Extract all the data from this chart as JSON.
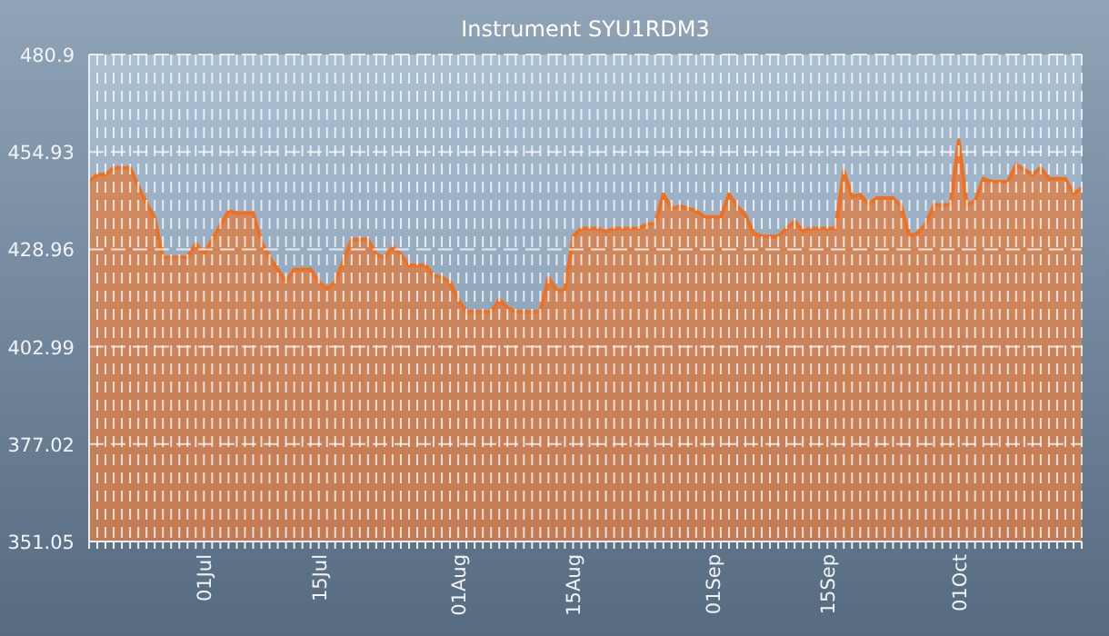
{
  "chart_data": {
    "type": "area",
    "title": "Instrument SYU1RDM3",
    "xlim": [
      "--06-17",
      "--10-16"
    ],
    "ylim": [
      351.05,
      480.9
    ],
    "yticks": [
      351.05,
      377.02,
      402.99,
      428.96,
      454.93,
      480.9
    ],
    "xticks": [
      {
        "value": "--06-17",
        "label": null
      },
      {
        "value": "--06-18",
        "label": null
      },
      {
        "value": "--06-19",
        "label": null
      },
      {
        "value": "--06-20",
        "label": null
      },
      {
        "value": "--06-21",
        "label": null
      },
      {
        "value": "--06-22",
        "label": null
      },
      {
        "value": "--06-23",
        "label": null
      },
      {
        "value": "--06-24",
        "label": null
      },
      {
        "value": "--06-25",
        "label": null
      },
      {
        "value": "--06-26",
        "label": null
      },
      {
        "value": "--06-27",
        "label": null
      },
      {
        "value": "--06-28",
        "label": null
      },
      {
        "value": "--06-29",
        "label": null
      },
      {
        "value": "--06-30",
        "label": null
      },
      {
        "value": "--07-01",
        "label": "01Jul"
      },
      {
        "value": "--07-02",
        "label": null
      },
      {
        "value": "--07-03",
        "label": null
      },
      {
        "value": "--07-04",
        "label": null
      },
      {
        "value": "--07-05",
        "label": null
      },
      {
        "value": "--07-06",
        "label": null
      },
      {
        "value": "--07-07",
        "label": null
      },
      {
        "value": "--07-08",
        "label": null
      },
      {
        "value": "--07-09",
        "label": null
      },
      {
        "value": "--07-10",
        "label": null
      },
      {
        "value": "--07-11",
        "label": null
      },
      {
        "value": "--07-12",
        "label": null
      },
      {
        "value": "--07-13",
        "label": null
      },
      {
        "value": "--07-14",
        "label": null
      },
      {
        "value": "--07-15",
        "label": "15Jul"
      },
      {
        "value": "--07-16",
        "label": null
      },
      {
        "value": "--07-17",
        "label": null
      },
      {
        "value": "--07-18",
        "label": null
      },
      {
        "value": "--07-19",
        "label": null
      },
      {
        "value": "--07-20",
        "label": null
      },
      {
        "value": "--07-21",
        "label": null
      },
      {
        "value": "--07-22",
        "label": null
      },
      {
        "value": "--07-23",
        "label": null
      },
      {
        "value": "--07-24",
        "label": null
      },
      {
        "value": "--07-25",
        "label": null
      },
      {
        "value": "--07-26",
        "label": null
      },
      {
        "value": "--07-27",
        "label": null
      },
      {
        "value": "--07-28",
        "label": null
      },
      {
        "value": "--07-29",
        "label": null
      },
      {
        "value": "--07-30",
        "label": null
      },
      {
        "value": "--07-31",
        "label": null
      },
      {
        "value": "--08-01",
        "label": "01Aug"
      },
      {
        "value": "--08-02",
        "label": null
      },
      {
        "value": "--08-03",
        "label": null
      },
      {
        "value": "--08-04",
        "label": null
      },
      {
        "value": "--08-05",
        "label": null
      },
      {
        "value": "--08-06",
        "label": null
      },
      {
        "value": "--08-07",
        "label": null
      },
      {
        "value": "--08-08",
        "label": null
      },
      {
        "value": "--08-09",
        "label": null
      },
      {
        "value": "--08-10",
        "label": null
      },
      {
        "value": "--08-11",
        "label": null
      },
      {
        "value": "--08-12",
        "label": null
      },
      {
        "value": "--08-13",
        "label": null
      },
      {
        "value": "--08-14",
        "label": null
      },
      {
        "value": "--08-15",
        "label": "15Aug"
      },
      {
        "value": "--08-16",
        "label": null
      },
      {
        "value": "--08-17",
        "label": null
      },
      {
        "value": "--08-18",
        "label": null
      },
      {
        "value": "--08-19",
        "label": null
      },
      {
        "value": "--08-20",
        "label": null
      },
      {
        "value": "--08-21",
        "label": null
      },
      {
        "value": "--08-22",
        "label": null
      },
      {
        "value": "--08-23",
        "label": null
      },
      {
        "value": "--08-24",
        "label": null
      },
      {
        "value": "--08-25",
        "label": null
      },
      {
        "value": "--08-26",
        "label": null
      },
      {
        "value": "--08-27",
        "label": null
      },
      {
        "value": "--08-28",
        "label": null
      },
      {
        "value": "--08-29",
        "label": null
      },
      {
        "value": "--08-30",
        "label": null
      },
      {
        "value": "--08-31",
        "label": null
      },
      {
        "value": "--09-01",
        "label": "01Sep"
      },
      {
        "value": "--09-02",
        "label": null
      },
      {
        "value": "--09-03",
        "label": null
      },
      {
        "value": "--09-04",
        "label": null
      },
      {
        "value": "--09-05",
        "label": null
      },
      {
        "value": "--09-06",
        "label": null
      },
      {
        "value": "--09-07",
        "label": null
      },
      {
        "value": "--09-08",
        "label": null
      },
      {
        "value": "--09-09",
        "label": null
      },
      {
        "value": "--09-10",
        "label": null
      },
      {
        "value": "--09-11",
        "label": null
      },
      {
        "value": "--09-12",
        "label": null
      },
      {
        "value": "--09-13",
        "label": null
      },
      {
        "value": "--09-14",
        "label": null
      },
      {
        "value": "--09-15",
        "label": "15Sep"
      },
      {
        "value": "--09-16",
        "label": null
      },
      {
        "value": "--09-17",
        "label": null
      },
      {
        "value": "--09-18",
        "label": null
      },
      {
        "value": "--09-19",
        "label": null
      },
      {
        "value": "--09-20",
        "label": null
      },
      {
        "value": "--09-21",
        "label": null
      },
      {
        "value": "--09-22",
        "label": null
      },
      {
        "value": "--09-23",
        "label": null
      },
      {
        "value": "--09-24",
        "label": null
      },
      {
        "value": "--09-25",
        "label": null
      },
      {
        "value": "--09-26",
        "label": null
      },
      {
        "value": "--09-27",
        "label": null
      },
      {
        "value": "--09-28",
        "label": null
      },
      {
        "value": "--09-29",
        "label": null
      },
      {
        "value": "--09-30",
        "label": null
      },
      {
        "value": "--10-01",
        "label": "01Oct"
      },
      {
        "value": "--10-02",
        "label": null
      },
      {
        "value": "--10-03",
        "label": null
      },
      {
        "value": "--10-04",
        "label": null
      },
      {
        "value": "--10-05",
        "label": null
      },
      {
        "value": "--10-06",
        "label": null
      },
      {
        "value": "--10-07",
        "label": null
      },
      {
        "value": "--10-08",
        "label": null
      },
      {
        "value": "--10-09",
        "label": null
      },
      {
        "value": "--10-10",
        "label": null
      },
      {
        "value": "--10-11",
        "label": null
      },
      {
        "value": "--10-12",
        "label": null
      },
      {
        "value": "--10-13",
        "label": null
      },
      {
        "value": "--10-14",
        "label": null
      },
      {
        "value": "--10-15",
        "label": null
      },
      {
        "value": "--10-16",
        "label": null
      }
    ],
    "grid": true,
    "series": [
      {
        "color": "#f07020",
        "x": [
          "--06-17",
          "--06-18",
          "--06-19",
          "--06-20",
          "--06-22",
          "--06-23",
          "--06-24",
          "--06-25",
          "--06-26",
          "--06-29",
          "--06-30",
          "--07-01",
          "--07-04",
          "--07-05",
          "--07-07",
          "--07-08",
          "--07-09",
          "--07-11",
          "--07-12",
          "--07-14",
          "--07-15",
          "--07-16",
          "--07-17",
          "--07-19",
          "--07-21",
          "--07-22",
          "--07-23",
          "--07-24",
          "--07-25",
          "--07-26",
          "--07-28",
          "--07-29",
          "--07-30",
          "--07-31",
          "--08-01",
          "--08-02",
          "--08-05",
          "--08-06",
          "--08-07",
          "--08-08",
          "--08-11",
          "--08-12",
          "--08-13",
          "--08-14",
          "--08-15",
          "--08-16",
          "--08-18",
          "--08-19",
          "--08-20",
          "--08-23",
          "--08-24",
          "--08-25",
          "--08-26",
          "--08-27",
          "--08-28",
          "--08-30",
          "--08-31",
          "--09-02",
          "--09-03",
          "--09-04",
          "--09-05",
          "--09-06",
          "--09-07",
          "--09-09",
          "--09-11",
          "--09-12",
          "--09-13",
          "--09-16",
          "--09-17",
          "--09-18",
          "--09-19",
          "--09-20",
          "--09-21",
          "--09-23",
          "--09-24",
          "--09-25",
          "--09-26",
          "--09-27",
          "--09-28",
          "--09-30",
          "--10-01",
          "--10-02",
          "--10-03",
          "--10-04",
          "--10-05",
          "--10-07",
          "--10-08",
          "--10-09",
          "--10-10",
          "--10-11",
          "--10-12",
          "--10-14",
          "--10-15",
          "--10-16"
        ],
        "values": [
          447.0,
          448.9,
          448.9,
          450.7,
          450.7,
          445.7,
          441.3,
          437.3,
          426.8,
          426.8,
          430.5,
          427.6,
          439.2,
          438.6,
          438.6,
          430.9,
          426.8,
          420.3,
          423.6,
          423.6,
          420.3,
          418.4,
          420.3,
          431.6,
          431.6,
          427.6,
          426.8,
          429.5,
          427.6,
          424.7,
          424.7,
          421.9,
          421.5,
          420.3,
          415.5,
          412.3,
          412.3,
          415.5,
          413.4,
          412.3,
          412.3,
          421.5,
          417.9,
          418.2,
          432.4,
          434.5,
          434.5,
          433.6,
          434.5,
          434.5,
          435.7,
          435.7,
          443.7,
          439.7,
          440.5,
          439.2,
          437.6,
          437.6,
          443.7,
          440.5,
          438.1,
          433.3,
          432.4,
          432.4,
          436.5,
          433.8,
          434.5,
          434.5,
          449.9,
          443.0,
          443.5,
          441.0,
          442.6,
          442.6,
          440.5,
          432.4,
          433.3,
          435.7,
          440.8,
          440.8,
          458.0,
          440.8,
          441.8,
          447.8,
          447.0,
          447.0,
          451.5,
          450.2,
          448.9,
          450.7,
          447.8,
          447.8,
          443.7,
          445.4
        ]
      }
    ]
  }
}
